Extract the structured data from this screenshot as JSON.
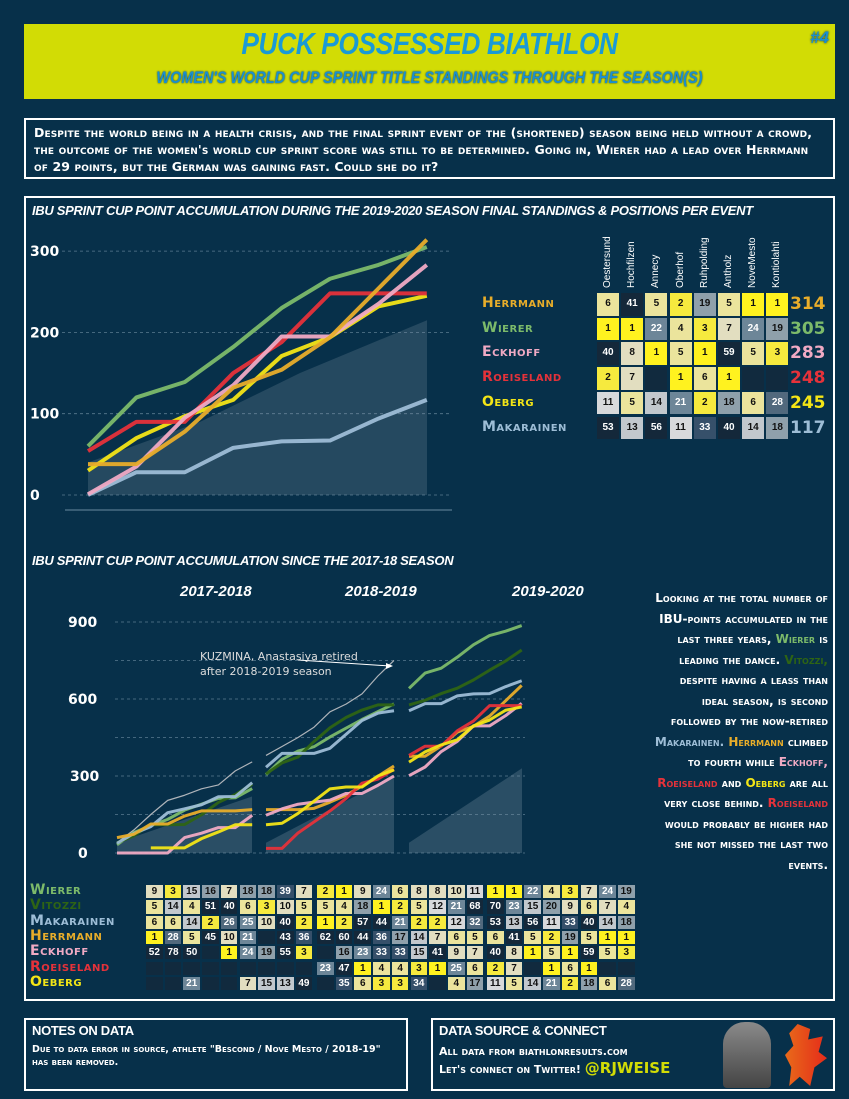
{
  "header": {
    "title": "PUCK POSSESSED BIATHLON",
    "subtitle": "WOMEN'S WORLD CUP SPRINT TITLE STANDINGS THROUGH THE SEASON(S)",
    "issue": "#4"
  },
  "intro": "Despite the world being in a health crisis, and the final sprint event of the (shortened) season being held without a crowd, the outcome of the women's world cup sprint score was still to be determined. Going in, Wierer had a lead over Herrmann of 29 points, but the German was gaining fast. Could she do it?",
  "colors": {
    "Wierer": "#7cba6a",
    "Vitozzi": "#2e6414",
    "Makarainen": "#9dbdd6",
    "Herrmann": "#e8ad2a",
    "Eckhoff": "#f0aac4",
    "Roeiseland": "#e5323a",
    "Oeberg": "#f3e516",
    "background": "#07304a",
    "banner": "#d2dc05",
    "title": "#1a9ad6"
  },
  "season_chart": {
    "title": "IBU Sprint Cup point accumulation during the 2019-2020 season"
  },
  "standings": {
    "title": "Final standings & positions per event",
    "events": [
      "Oestersund",
      "Hochfilzen",
      "Annecy",
      "Oberhof",
      "Ruhpolding",
      "Antholz",
      "NoveMesto",
      "Kontiolahti"
    ],
    "rows": [
      {
        "name": "Herrmann",
        "positions": [
          6,
          41,
          5,
          2,
          19,
          5,
          1,
          1
        ],
        "total": "314"
      },
      {
        "name": "Wierer",
        "positions": [
          1,
          1,
          22,
          4,
          3,
          7,
          24,
          19
        ],
        "total": "305"
      },
      {
        "name": "Eckhoff",
        "positions": [
          40,
          8,
          1,
          5,
          1,
          59,
          5,
          3
        ],
        "total": "283"
      },
      {
        "name": "Roeiseland",
        "positions": [
          2,
          7,
          null,
          1,
          6,
          1,
          null,
          null
        ],
        "total": "248"
      },
      {
        "name": "Oeberg",
        "positions": [
          11,
          5,
          14,
          21,
          2,
          18,
          6,
          28
        ],
        "total": "245"
      },
      {
        "name": "Makarainen",
        "positions": [
          53,
          13,
          56,
          11,
          33,
          40,
          14,
          18
        ],
        "total": "117"
      }
    ]
  },
  "multi_chart": {
    "title": "IBU Sprint Cup point accumulation since the 2017-18 season",
    "seasons": [
      "2017-2018",
      "2018-2019",
      "2019-2020"
    ],
    "annotation_line1": "KUZMINA, Anastasiya retired",
    "annotation_line2": "after 2018-2019 season"
  },
  "history_table": {
    "rows": [
      {
        "name": "Wierer",
        "positions": [
          [
            9,
            3,
            15,
            16,
            7,
            18,
            18,
            39,
            7
          ],
          [
            2,
            1,
            9,
            24,
            6,
            8,
            8,
            10,
            11
          ],
          [
            1,
            1,
            22,
            4,
            3,
            7,
            24,
            19
          ]
        ]
      },
      {
        "name": "Vitozzi",
        "positions": [
          [
            5,
            14,
            4,
            51,
            40,
            6,
            3,
            10,
            5
          ],
          [
            5,
            4,
            18,
            1,
            2,
            5,
            12,
            21,
            68
          ],
          [
            70,
            23,
            15,
            20,
            9,
            6,
            7,
            4
          ]
        ]
      },
      {
        "name": "Makarainen",
        "positions": [
          [
            6,
            6,
            14,
            2,
            26,
            25,
            10,
            40,
            2
          ],
          [
            1,
            2,
            57,
            44,
            21,
            2,
            2,
            12,
            32
          ],
          [
            53,
            13,
            56,
            11,
            33,
            40,
            14,
            18
          ]
        ]
      },
      {
        "name": "Herrmann",
        "positions": [
          [
            1,
            28,
            5,
            45,
            10,
            21,
            null,
            43,
            36
          ],
          [
            62,
            60,
            44,
            36,
            17,
            14,
            7,
            6,
            5
          ],
          [
            6,
            41,
            5,
            2,
            19,
            5,
            1,
            1
          ]
        ]
      },
      {
        "name": "Eckhoff",
        "positions": [
          [
            52,
            78,
            50,
            null,
            1,
            24,
            19,
            55,
            3
          ],
          [
            null,
            16,
            23,
            33,
            33,
            15,
            41,
            9,
            7
          ],
          [
            40,
            8,
            1,
            5,
            1,
            59,
            5,
            3
          ]
        ]
      },
      {
        "name": "Roeiseland",
        "positions": [
          [
            null,
            null,
            null,
            null,
            null,
            null,
            null,
            null,
            null
          ],
          [
            23,
            47,
            1,
            4,
            4,
            3,
            1,
            25,
            6
          ],
          [
            2,
            7,
            null,
            1,
            6,
            1,
            null,
            null
          ]
        ]
      },
      {
        "name": "Oeberg",
        "positions": [
          [
            null,
            null,
            21,
            null,
            null,
            7,
            15,
            13,
            49
          ],
          [
            null,
            35,
            6,
            3,
            3,
            34,
            null,
            4,
            17
          ],
          [
            11,
            5,
            14,
            21,
            2,
            18,
            6,
            28
          ]
        ]
      }
    ]
  },
  "side_text": [
    {
      "t": "Looking at the total number of IBU-points accumulated in the last three years, "
    },
    {
      "t": "Wierer",
      "c": "Wierer"
    },
    {
      "t": " is leading the dance. "
    },
    {
      "t": "Vitozzi,",
      "c": "Vitozzi"
    },
    {
      "t": " despite having a leass than ideal season, is second followed by the now-retired "
    },
    {
      "t": "Makarainen.",
      "c": "Makarainen"
    },
    {
      "t": " "
    },
    {
      "t": "Herrmann",
      "c": "Herrmann"
    },
    {
      "t": " climbed to fourth while "
    },
    {
      "t": "Eckhoff,",
      "c": "Eckhoff"
    },
    {
      "t": " "
    },
    {
      "t": "Roeiseland",
      "c": "Roeiseland"
    },
    {
      "t": " and "
    },
    {
      "t": "Oeberg",
      "c": "Oeberg"
    },
    {
      "t": " are all very close behind. "
    },
    {
      "t": "Roeiseland",
      "c": "Roeiseland"
    },
    {
      "t": " would probably be higher had she not missed the last two events."
    }
  ],
  "notes": {
    "title": "NOTES ON DATA",
    "text": "Due to data error in source, athlete \"Bescond / Nove Mesto / 2018-19\" has been removed."
  },
  "source": {
    "title": "DATA SOURCE & CONNECT",
    "line1": "All data from biathlonresults.com",
    "line2": "Let's connect on Twitter!",
    "handle": "@RJWEISE"
  },
  "chart_data": [
    {
      "type": "line",
      "title": "IBU Sprint Cup point accumulation during the 2019-2020 season",
      "categories": [
        "Oestersund",
        "Hochfilzen",
        "Annecy",
        "Oberhof",
        "Ruhpolding",
        "Antholz",
        "NoveMesto",
        "Kontiolahti"
      ],
      "yticks": [
        0,
        100,
        200,
        300
      ],
      "ylim": [
        0,
        320
      ],
      "grid": true,
      "series": [
        {
          "name": "Herrmann",
          "values": [
            38,
            38,
            78,
            132,
            154,
            194,
            254,
            314
          ]
        },
        {
          "name": "Wierer",
          "values": [
            60,
            120,
            139,
            182,
            230,
            266,
            283,
            305
          ]
        },
        {
          "name": "Eckhoff",
          "values": [
            1,
            35,
            95,
            135,
            195,
            195,
            235,
            283
          ]
        },
        {
          "name": "Roeiseland",
          "values": [
            54,
            90,
            90,
            150,
            188,
            248,
            248,
            248
          ]
        },
        {
          "name": "Oeberg",
          "values": [
            30,
            70,
            97,
            117,
            171,
            194,
            232,
            245
          ]
        },
        {
          "name": "Makarainen",
          "values": [
            0,
            28,
            28,
            58,
            66,
            67,
            94,
            117
          ]
        }
      ]
    },
    {
      "type": "line",
      "title": "IBU Sprint Cup point accumulation since the 2017-18 season",
      "panels": [
        "2017-2018",
        "2018-2019",
        "2019-2020"
      ],
      "yticks": [
        0,
        300,
        600,
        900
      ],
      "ylim": [
        0,
        900
      ],
      "grid": true,
      "series": [
        {
          "name": "KUZMINA, Anastasiya",
          "values": [
            [
              40,
              90,
              150,
              205,
              225,
              250,
              265,
              320,
              355
            ],
            [
              380,
              415,
              450,
              490,
              550,
              580,
              620,
              690,
              750
            ],
            null
          ]
        },
        {
          "name": "Wierer",
          "values": [
            [
              32,
              80,
              106,
              131,
              167,
              190,
              213,
              215,
              251
            ],
            [
              305,
              365,
              397,
              414,
              452,
              486,
              520,
              551,
              581
            ],
            [
              641,
              701,
              720,
              763,
              811,
              847,
              864,
              886
            ]
          ]
        },
        {
          "name": "Vitozzi",
          "values": [
            [
              40,
              67,
              110,
              110,
              111,
              149,
              197,
              228,
              268
            ],
            [
              308,
              351,
              374,
              434,
              488,
              528,
              557,
              577,
              577
            ],
            [
              577,
              595,
              621,
              642,
              674,
              712,
              748,
              791
            ]
          ]
        },
        {
          "name": "Makarainen",
          "values": [
            [
              38,
              76,
              103,
              157,
              172,
              188,
              219,
              220,
              274
            ],
            [
              334,
              388,
              388,
              388,
              408,
              462,
              516,
              545,
              554
            ],
            [
              554,
              582,
              582,
              612,
              620,
              621,
              648,
              671
            ]
          ]
        },
        {
          "name": "Herrmann",
          "values": [
            [
              60,
              73,
              113,
              113,
              144,
              164,
              164,
              164,
              169
            ],
            [
              169,
              169,
              169,
              174,
              198,
              225,
              261,
              299,
              339
            ],
            [
              377,
              377,
              417,
              471,
              493,
              533,
              593,
              653
            ]
          ]
        },
        {
          "name": "Eckhoff",
          "values": [
            [
              0,
              0,
              0,
              0,
              60,
              77,
              99,
              99,
              147
            ],
            [
              147,
              172,
              190,
              198,
              206,
              232,
              232,
              264,
              300
            ],
            [
              301,
              335,
              395,
              435,
              495,
              495,
              535,
              583
            ]
          ]
        },
        {
          "name": "Roeiseland",
          "values": [
            null,
            [
              18,
              18,
              78,
              121,
              164,
              212,
              272,
              288,
              326
            ],
            [
              380,
              416,
              416,
              476,
              514,
              574,
              574,
              574
            ]
          ]
        },
        {
          "name": "Oeberg",
          "values": [
            [
              null,
              null,
              20,
              20,
              20,
              56,
              82,
              110,
              110
            ],
            [
              110,
              116,
              154,
              202,
              250,
              257,
              257,
              300,
              324
            ],
            [
              354,
              394,
              421,
              441,
              495,
              518,
              556,
              569
            ]
          ]
        }
      ]
    }
  ]
}
